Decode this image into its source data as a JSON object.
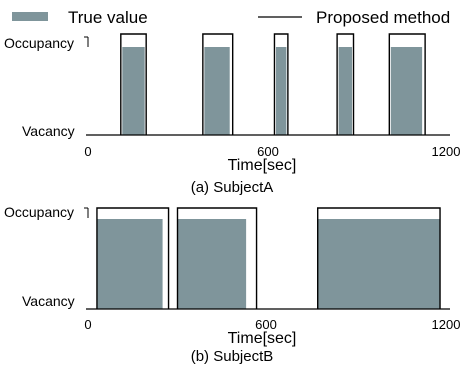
{
  "legend": {
    "true_label": "True value",
    "proposed_label": "Proposed method",
    "true_color": "#7f959b",
    "proposed_color": "#000000"
  },
  "chart_data": [
    {
      "type": "area",
      "caption": "(a) SubjectA",
      "xlabel": "Time[sec]",
      "ylabel": "",
      "xlim": [
        0,
        1200
      ],
      "x_ticks": [
        0,
        600,
        1200
      ],
      "y_ticks": [
        "Vacancy",
        "Occupancy"
      ],
      "series": [
        {
          "name": "True value",
          "intervals": [
            [
              115,
              190
            ],
            [
              390,
              475
            ],
            [
              630,
              665
            ],
            [
              840,
              885
            ],
            [
              1015,
              1120
            ]
          ]
        },
        {
          "name": "Proposed method",
          "intervals": [
            [
              110,
              195
            ],
            [
              385,
              485
            ],
            [
              625,
              670
            ],
            [
              835,
              890
            ],
            [
              1010,
              1130
            ]
          ]
        }
      ]
    },
    {
      "type": "area",
      "caption": "(b) SubjectB",
      "xlabel": "Time[sec]",
      "ylabel": "",
      "xlim": [
        0,
        1200
      ],
      "x_ticks": [
        0,
        600,
        1200
      ],
      "y_ticks": [
        "Vacancy",
        "Occupancy"
      ],
      "series": [
        {
          "name": "True value",
          "intervals": [
            [
              30,
              250
            ],
            [
              300,
              530
            ],
            [
              770,
              1180
            ]
          ]
        },
        {
          "name": "Proposed method",
          "intervals": [
            [
              30,
              270
            ],
            [
              300,
              565
            ],
            [
              770,
              1180
            ]
          ]
        }
      ]
    }
  ]
}
